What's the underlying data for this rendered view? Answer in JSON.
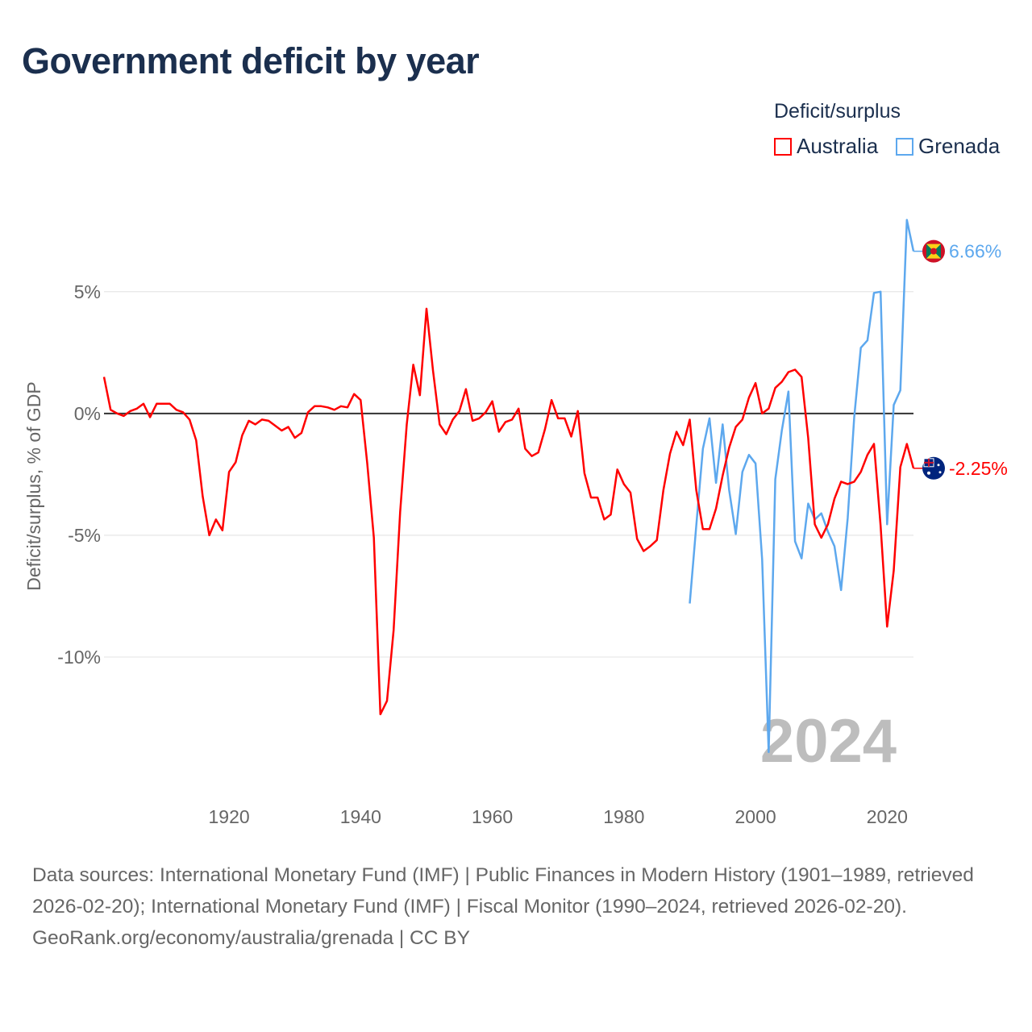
{
  "title": "Government deficit by year",
  "legend": {
    "title": "Deficit/surplus",
    "items": [
      {
        "label": "Australia",
        "color": "#ff0000"
      },
      {
        "label": "Grenada",
        "color": "#5da8ee"
      }
    ]
  },
  "chart_data": {
    "type": "line",
    "title": "Government deficit by year",
    "xlabel": "",
    "ylabel": "Deficit/surplus, % of GDP",
    "xlim": [
      1901,
      2024
    ],
    "ylim": [
      -15,
      8.7
    ],
    "x_ticks": [
      1920,
      1940,
      1960,
      1980,
      2000,
      2020
    ],
    "y_ticks": [
      {
        "value": 5,
        "label": "5%"
      },
      {
        "value": 0,
        "label": "0%"
      },
      {
        "value": -5,
        "label": "-5%"
      },
      {
        "value": -10,
        "label": "-10%"
      }
    ],
    "grid": true,
    "legend_position": "top-right",
    "year_watermark": "2024",
    "series": [
      {
        "name": "Australia",
        "color": "#ff0000",
        "start_year": 1901,
        "end_label": "-2.25%",
        "values": [
          1.5,
          0.15,
          0,
          -0.1,
          0.1,
          0.2,
          0.4,
          -0.15,
          0.4,
          0.4,
          0.4,
          0.15,
          0.05,
          -0.25,
          -1.1,
          -3.4,
          -5.0,
          -4.35,
          -4.8,
          -2.4,
          -2.0,
          -0.9,
          -0.3,
          -0.45,
          -0.25,
          -0.3,
          -0.5,
          -0.7,
          -0.55,
          -1.0,
          -0.8,
          0.05,
          0.3,
          0.3,
          0.25,
          0.15,
          0.3,
          0.25,
          0.8,
          0.55,
          -2.05,
          -5.1,
          -12.35,
          -11.8,
          -8.9,
          -4.05,
          -0.45,
          2.0,
          0.75,
          4.3,
          1.75,
          -0.45,
          -0.85,
          -0.25,
          0.1,
          1.0,
          -0.3,
          -0.2,
          0.05,
          0.5,
          -0.75,
          -0.35,
          -0.25,
          0.2,
          -1.45,
          -1.75,
          -1.6,
          -0.65,
          0.55,
          -0.2,
          -0.2,
          -0.95,
          0.1,
          -2.45,
          -3.45,
          -3.45,
          -4.35,
          -4.15,
          -2.3,
          -2.9,
          -3.25,
          -5.15,
          -5.65,
          -5.45,
          -5.2,
          -3.15,
          -1.65,
          -0.75,
          -1.3,
          -0.25,
          -3.15,
          -4.75,
          -4.75,
          -3.9,
          -2.55,
          -1.4,
          -0.55,
          -0.25,
          0.65,
          1.25,
          0,
          0.2,
          1.05,
          1.3,
          1.7,
          1.8,
          1.5,
          -1.0,
          -4.55,
          -5.1,
          -4.55,
          -3.5,
          -2.8,
          -2.9,
          -2.8,
          -2.4,
          -1.7,
          -1.25,
          -4.6,
          -8.75,
          -6.45,
          -2.2,
          -1.25,
          -2.25
        ]
      },
      {
        "name": "Grenada",
        "color": "#5da8ee",
        "start_year": 1990,
        "end_label": "6.66%",
        "values": [
          -7.8,
          -4.6,
          -1.45,
          -0.2,
          -2.85,
          -0.45,
          -3.15,
          -4.95,
          -2.4,
          -1.7,
          -2.05,
          -6.0,
          -13.9,
          -2.7,
          -0.7,
          0.9,
          -5.25,
          -5.95,
          -3.7,
          -4.35,
          -4.1,
          -4.85,
          -5.45,
          -7.25,
          -4.3,
          -0.15,
          2.7,
          3.0,
          4.95,
          5.0,
          -4.55,
          0.35,
          0.95,
          7.95,
          6.66
        ]
      }
    ]
  },
  "footer": {
    "sources": "Data sources: International Monetary Fund (IMF) | Public Finances in Modern History (1901–1989, retrieved 2026-02-20); International Monetary Fund (IMF) | Fiscal Monitor (1990–2024, retrieved 2026-02-20).",
    "credit": "GeoRank.org/economy/australia/grenada | CC BY"
  }
}
